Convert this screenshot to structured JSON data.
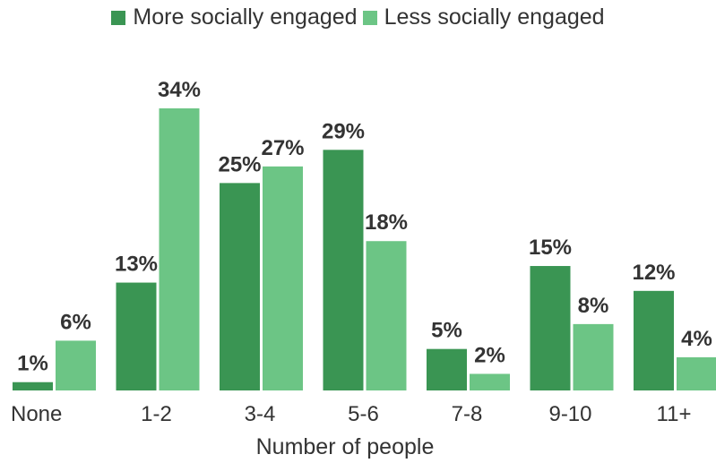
{
  "colors": {
    "more": "#3a9553",
    "less": "#6cc585"
  },
  "chart_data": {
    "type": "bar",
    "title": "",
    "xlabel": "Number of people",
    "ylabel": "",
    "categories": [
      "None",
      "1-2",
      "3-4",
      "5-6",
      "7-8",
      "9-10",
      "11+"
    ],
    "series": [
      {
        "name": "More socially engaged",
        "values": [
          1,
          13,
          25,
          29,
          5,
          15,
          12
        ]
      },
      {
        "name": "Less socially engaged",
        "values": [
          6,
          34,
          27,
          18,
          2,
          8,
          4
        ]
      }
    ],
    "value_suffix": "%",
    "ylim": [
      0,
      34
    ],
    "legend": "top-center",
    "grid": false
  }
}
